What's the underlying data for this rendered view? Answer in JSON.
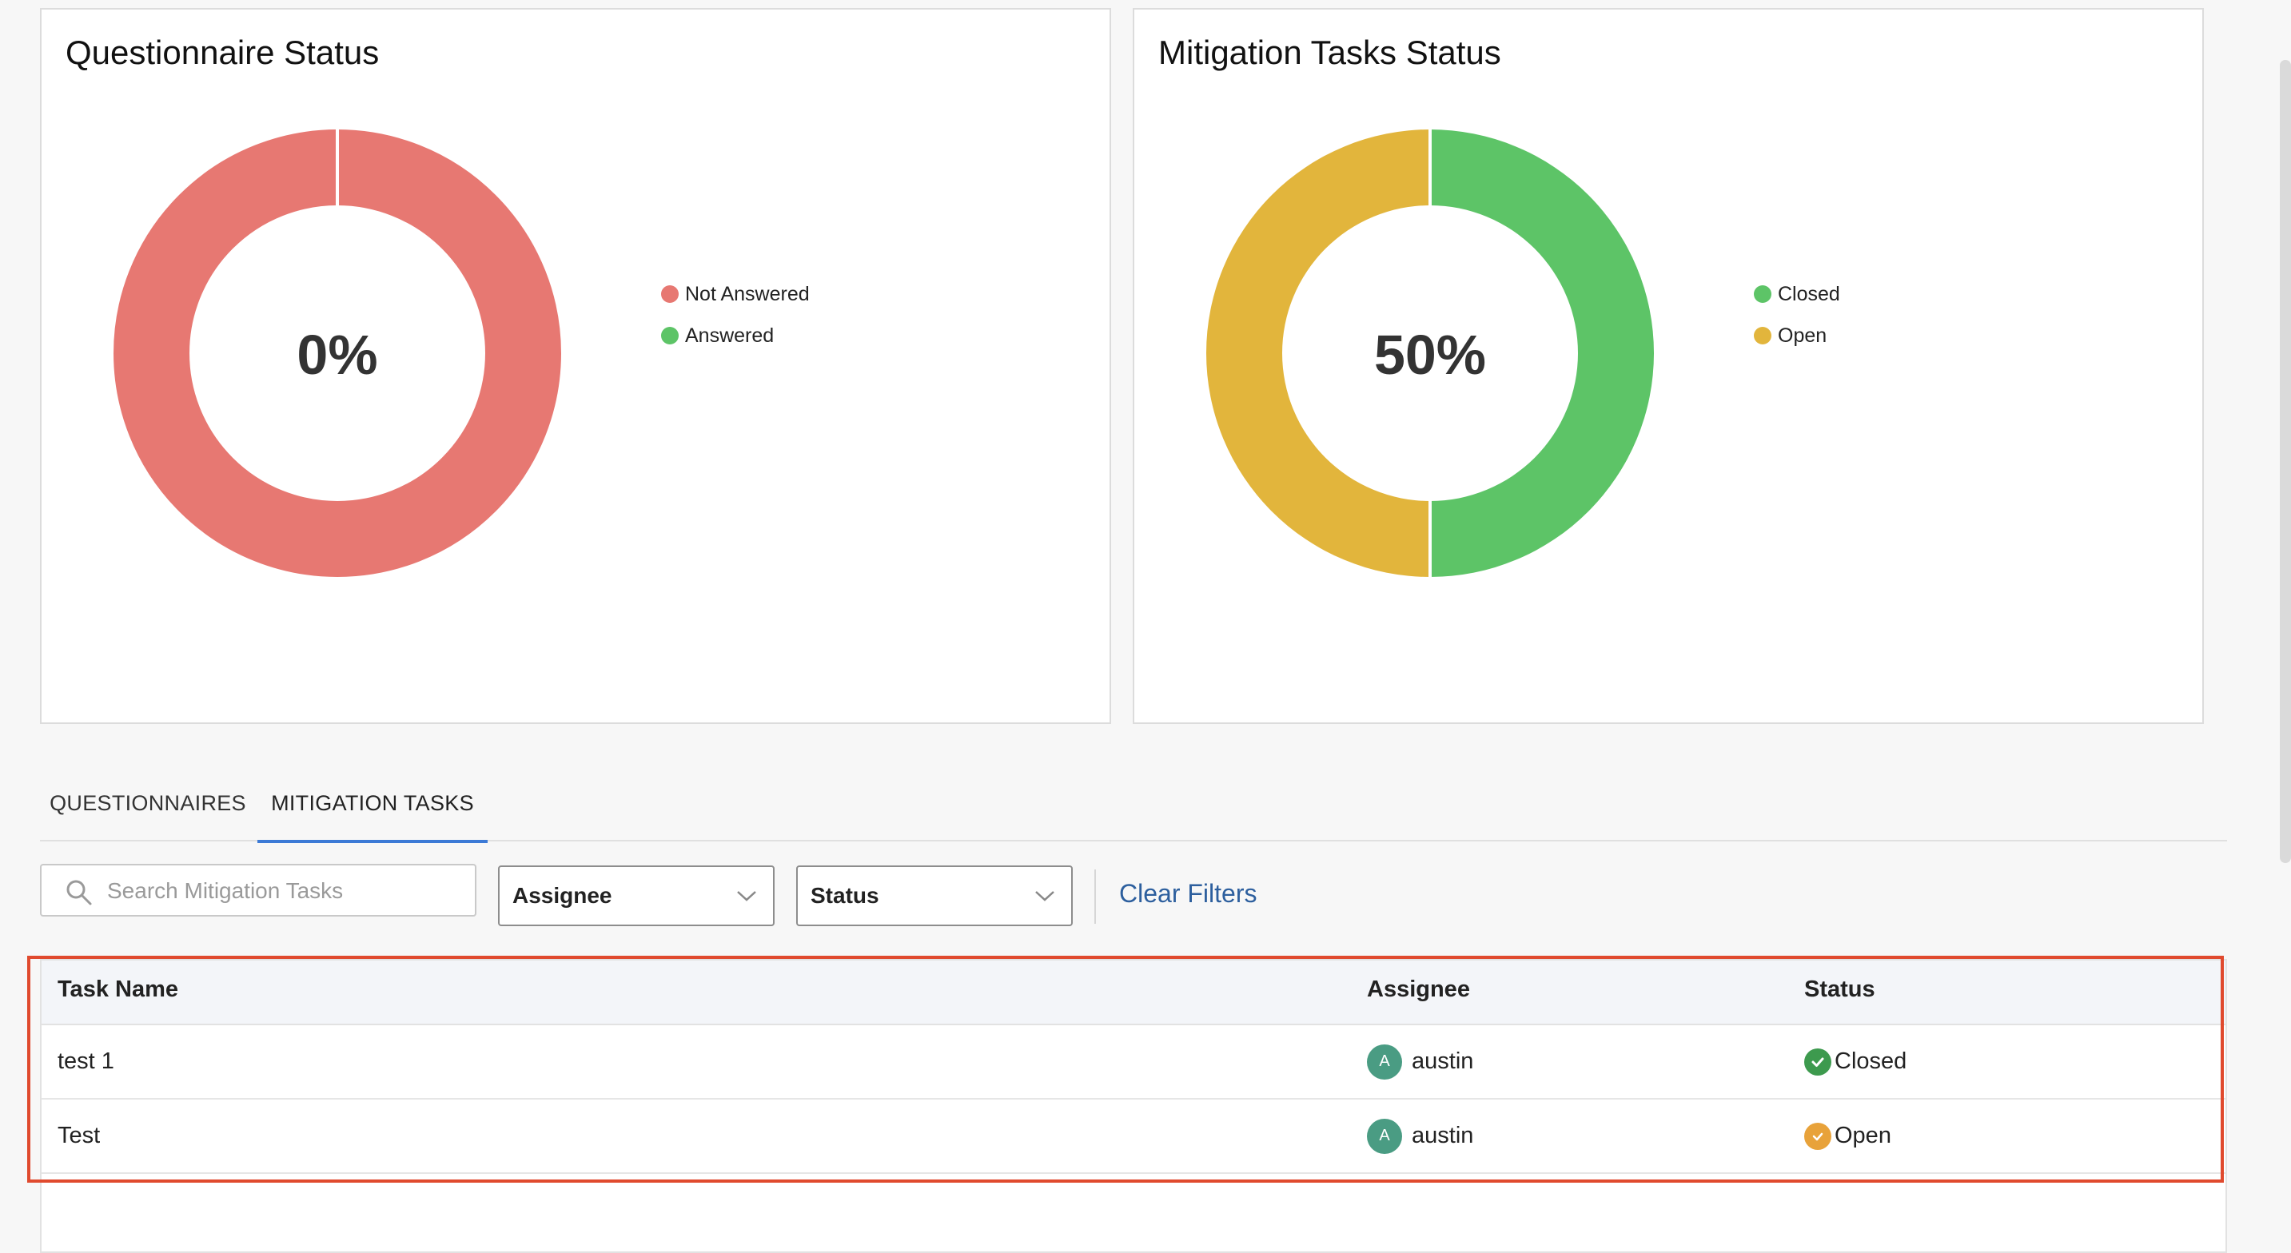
{
  "questionnaire_card": {
    "title": "Questionnaire Status",
    "center_label": "0%",
    "legend": [
      {
        "label": "Not Answered",
        "color": "#e77872"
      },
      {
        "label": "Answered",
        "color": "#5dc467"
      }
    ]
  },
  "mitigation_card": {
    "title": "Mitigation Tasks Status",
    "center_label": "50%",
    "legend": [
      {
        "label": "Closed",
        "color": "#5dc467"
      },
      {
        "label": "Open",
        "color": "#e2b53c"
      }
    ]
  },
  "chart_data": [
    {
      "type": "pie",
      "title": "Questionnaire Status",
      "categories": [
        "Not Answered",
        "Answered"
      ],
      "values": [
        100,
        0
      ],
      "colors": [
        "#e77872",
        "#5dc467"
      ],
      "center_label": "0%",
      "legend_position": "right"
    },
    {
      "type": "pie",
      "title": "Mitigation Tasks Status",
      "categories": [
        "Closed",
        "Open"
      ],
      "values": [
        50,
        50
      ],
      "colors": [
        "#5dc467",
        "#e2b53c"
      ],
      "center_label": "50%",
      "legend_position": "right"
    }
  ],
  "tabs": [
    {
      "label": "QUESTIONNAIRES",
      "active": false
    },
    {
      "label": "MITIGATION TASKS",
      "active": true
    }
  ],
  "filters": {
    "search_placeholder": "Search Mitigation Tasks",
    "assignee_label": "Assignee",
    "status_label": "Status",
    "clear_label": "Clear Filters"
  },
  "table": {
    "headers": [
      "Task Name",
      "Assignee",
      "Status"
    ],
    "rows": [
      {
        "task_name": "test 1",
        "avatar_initial": "A",
        "assignee": "austin",
        "status": "Closed",
        "status_color": "#3d9a4e"
      },
      {
        "task_name": "Test",
        "avatar_initial": "A",
        "assignee": "austin",
        "status": "Open",
        "status_color": "#e8a23a"
      }
    ]
  },
  "colors": {
    "accent": "#3c7ad6",
    "highlight": "#e04a2e",
    "link": "#2d5f9e"
  }
}
